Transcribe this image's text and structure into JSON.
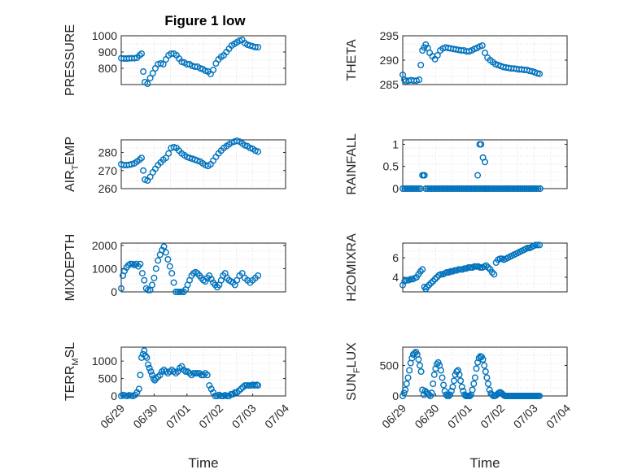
{
  "figure_title": "Figure 1 low",
  "colors": {
    "marker": "#0072BD",
    "grid": "#d9d9d9",
    "axis": "#262626"
  },
  "chart_data": [
    {
      "id": "pressure",
      "type": "scatter",
      "ylabel": "PRESSURE",
      "ylim": [
        700,
        1000
      ],
      "yticks": [
        800,
        900,
        1000
      ],
      "ytick_labels": [
        "800",
        "900",
        "1000"
      ],
      "xlim": [
        0,
        5
      ],
      "xticks": [],
      "xtick_labels": [],
      "xlabel": "",
      "grid": true,
      "x": [
        0.0,
        0.08,
        0.16,
        0.24,
        0.32,
        0.4,
        0.48,
        0.56,
        0.62,
        0.67,
        0.72,
        0.8,
        0.88,
        0.96,
        1.04,
        1.12,
        1.2,
        1.28,
        1.36,
        1.44,
        1.52,
        1.6,
        1.68,
        1.76,
        1.84,
        1.92,
        2.0,
        2.08,
        2.16,
        2.24,
        2.32,
        2.4,
        2.48,
        2.56,
        2.64,
        2.72,
        2.8,
        2.88,
        2.96,
        3.04,
        3.12,
        3.2,
        3.28,
        3.36,
        3.44,
        3.52,
        3.6,
        3.68,
        3.76,
        3.84,
        3.92,
        4.0,
        4.08,
        4.16
      ],
      "y": [
        862,
        860,
        860,
        861,
        862,
        862,
        865,
        880,
        890,
        780,
        715,
        705,
        740,
        770,
        800,
        825,
        830,
        825,
        855,
        880,
        890,
        890,
        880,
        860,
        840,
        835,
        825,
        825,
        815,
        810,
        810,
        800,
        795,
        785,
        780,
        765,
        790,
        830,
        855,
        870,
        880,
        900,
        920,
        940,
        950,
        960,
        970,
        975,
        955,
        945,
        940,
        935,
        930,
        930
      ]
    },
    {
      "id": "theta",
      "type": "scatter",
      "ylabel": "THETA",
      "ylim": [
        285,
        295
      ],
      "yticks": [
        285,
        290,
        295
      ],
      "ytick_labels": [
        "285",
        "290",
        "295"
      ],
      "xlim": [
        0,
        5
      ],
      "xticks": [],
      "xtick_labels": [],
      "xlabel": "",
      "grid": true,
      "x": [
        0.0,
        0.05,
        0.1,
        0.18,
        0.26,
        0.34,
        0.42,
        0.5,
        0.55,
        0.6,
        0.65,
        0.7,
        0.76,
        0.82,
        0.9,
        0.98,
        1.06,
        1.14,
        1.22,
        1.3,
        1.38,
        1.46,
        1.54,
        1.62,
        1.7,
        1.78,
        1.86,
        1.94,
        2.02,
        2.1,
        2.18,
        2.26,
        2.34,
        2.42,
        2.5,
        2.58,
        2.66,
        2.74,
        2.82,
        2.9,
        2.98,
        3.06,
        3.14,
        3.22,
        3.3,
        3.38,
        3.46,
        3.54,
        3.62,
        3.7,
        3.78,
        3.86,
        3.94,
        4.02,
        4.1,
        4.16
      ],
      "y": [
        287.0,
        286.0,
        285.7,
        285.8,
        285.9,
        285.8,
        285.8,
        286.0,
        289.0,
        292.0,
        292.6,
        293.2,
        292.5,
        291.5,
        290.8,
        290.2,
        291.0,
        292.0,
        292.4,
        292.6,
        292.5,
        292.4,
        292.3,
        292.2,
        292.1,
        292.0,
        292.0,
        291.8,
        291.8,
        292.0,
        292.3,
        292.5,
        292.8,
        293.0,
        291.5,
        290.5,
        290.0,
        289.6,
        289.2,
        289.0,
        288.8,
        288.6,
        288.5,
        288.4,
        288.3,
        288.3,
        288.2,
        288.1,
        288.1,
        288.0,
        288.0,
        287.8,
        287.7,
        287.5,
        287.3,
        287.2
      ]
    },
    {
      "id": "air_temp",
      "type": "scatter",
      "ylabel": "AIR_TEMP",
      "ylim": [
        260,
        287
      ],
      "yticks": [
        260,
        270,
        280
      ],
      "ytick_labels": [
        "260",
        "270",
        "280"
      ],
      "xlim": [
        0,
        5
      ],
      "xticks": [],
      "xtick_labels": [],
      "xlabel": "",
      "grid": true,
      "x": [
        0.0,
        0.08,
        0.16,
        0.24,
        0.32,
        0.4,
        0.48,
        0.56,
        0.62,
        0.67,
        0.72,
        0.8,
        0.88,
        0.96,
        1.04,
        1.12,
        1.2,
        1.28,
        1.36,
        1.44,
        1.52,
        1.6,
        1.68,
        1.76,
        1.84,
        1.92,
        2.0,
        2.08,
        2.16,
        2.24,
        2.32,
        2.4,
        2.48,
        2.56,
        2.64,
        2.72,
        2.8,
        2.88,
        2.96,
        3.04,
        3.12,
        3.2,
        3.28,
        3.36,
        3.44,
        3.52,
        3.6,
        3.68,
        3.76,
        3.84,
        3.92,
        4.0,
        4.08,
        4.16
      ],
      "y": [
        273.5,
        273.0,
        273.0,
        273.2,
        273.5,
        274.0,
        275.0,
        276.0,
        277.0,
        270.0,
        265.0,
        264.5,
        266.5,
        269.0,
        271.0,
        273.0,
        274.5,
        276.0,
        277.0,
        279.5,
        282.5,
        283.0,
        282.5,
        281.0,
        279.5,
        278.5,
        277.5,
        277.0,
        276.5,
        276.0,
        275.5,
        275.0,
        274.0,
        273.0,
        272.5,
        273.5,
        275.5,
        277.5,
        279.5,
        281.0,
        282.5,
        283.5,
        284.5,
        285.5,
        286.0,
        286.5,
        286.0,
        285.0,
        284.0,
        283.5,
        282.5,
        282.0,
        281.0,
        280.5
      ]
    },
    {
      "id": "rainfall",
      "type": "scatter",
      "ylabel": "RAINFALL",
      "ylim": [
        0,
        1.1
      ],
      "yticks": [
        0,
        0.5,
        1
      ],
      "ytick_labels": [
        "0",
        "0.5",
        "1"
      ],
      "xlim": [
        0,
        5
      ],
      "xticks": [],
      "xtick_labels": [],
      "xlabel": "",
      "grid": true,
      "x": [
        0.0,
        0.06,
        0.12,
        0.18,
        0.24,
        0.3,
        0.36,
        0.42,
        0.48,
        0.54,
        0.6,
        0.64,
        0.66,
        0.7,
        0.76,
        0.82,
        0.88,
        0.94,
        1.0,
        1.06,
        1.12,
        1.18,
        1.24,
        1.3,
        1.36,
        1.42,
        1.48,
        1.54,
        1.6,
        1.66,
        1.72,
        1.78,
        1.84,
        1.9,
        1.96,
        2.02,
        2.08,
        2.14,
        2.2,
        2.26,
        2.32,
        2.38,
        2.44,
        2.5,
        2.56,
        2.62,
        2.68,
        2.74,
        2.8,
        2.86,
        2.92,
        2.98,
        3.04,
        3.1,
        3.16,
        3.22,
        3.28,
        3.34,
        3.4,
        3.46,
        3.52,
        3.58,
        3.64,
        3.7,
        3.76,
        3.82,
        3.88,
        3.94,
        4.0,
        4.06,
        4.12,
        4.18,
        2.28,
        2.34,
        2.38,
        2.44,
        2.5,
        2.52
      ],
      "y": [
        0,
        0,
        0,
        0,
        0,
        0,
        0,
        0,
        0,
        0,
        0.3,
        0.3,
        0.3,
        0,
        0,
        0,
        0,
        0,
        0,
        0,
        0,
        0,
        0,
        0,
        0,
        0,
        0,
        0,
        0,
        0,
        0,
        0,
        0,
        0,
        0,
        0,
        0,
        0,
        0,
        0,
        0,
        0,
        0,
        0,
        0,
        0,
        0,
        0,
        0,
        0,
        0,
        0,
        0,
        0,
        0,
        0,
        0,
        0,
        0,
        0,
        0,
        0,
        0,
        0,
        0,
        0,
        0,
        0,
        0,
        0,
        0,
        0,
        0.3,
        1.0,
        1.0,
        0.7,
        0.6,
        0
      ]
    },
    {
      "id": "mixdepth",
      "type": "scatter",
      "ylabel": "MIXDEPTH",
      "ylim": [
        0,
        2100
      ],
      "yticks": [
        0,
        1000,
        2000
      ],
      "ytick_labels": [
        "0",
        "1000",
        "2000"
      ],
      "xlim": [
        0,
        5
      ],
      "xticks": [],
      "xtick_labels": [],
      "xlabel": "",
      "grid": true,
      "x": [
        0.0,
        0.05,
        0.1,
        0.16,
        0.22,
        0.28,
        0.34,
        0.4,
        0.46,
        0.52,
        0.58,
        0.64,
        0.7,
        0.76,
        0.82,
        0.88,
        0.94,
        1.0,
        1.06,
        1.12,
        1.18,
        1.24,
        1.3,
        1.36,
        1.42,
        1.48,
        1.54,
        1.6,
        1.66,
        1.72,
        1.78,
        1.84,
        1.9,
        1.96,
        2.02,
        2.08,
        2.14,
        2.2,
        2.26,
        2.32,
        2.38,
        2.44,
        2.5,
        2.56,
        2.62,
        2.68,
        2.74,
        2.8,
        2.86,
        2.92,
        2.98,
        3.04,
        3.1,
        3.16,
        3.22,
        3.28,
        3.34,
        3.4,
        3.46,
        3.52,
        3.6,
        3.68,
        3.76,
        3.84,
        3.92,
        4.0,
        4.08,
        4.16
      ],
      "y": [
        150,
        700,
        900,
        1050,
        1150,
        1200,
        1200,
        1150,
        1200,
        1100,
        1200,
        800,
        500,
        150,
        80,
        80,
        300,
        600,
        1000,
        1350,
        1600,
        1800,
        1950,
        1700,
        1400,
        1100,
        800,
        400,
        0,
        0,
        0,
        0,
        0,
        100,
        300,
        500,
        700,
        800,
        850,
        800,
        700,
        600,
        500,
        450,
        600,
        700,
        550,
        400,
        300,
        200,
        300,
        500,
        700,
        800,
        600,
        500,
        450,
        400,
        300,
        500,
        700,
        800,
        600,
        500,
        400,
        500,
        600,
        700
      ]
    },
    {
      "id": "h2omixra",
      "type": "scatter",
      "ylabel": "H2OMIXRA",
      "ylim": [
        2.5,
        7.5
      ],
      "yticks": [
        4,
        6
      ],
      "ytick_labels": [
        "4",
        "6"
      ],
      "xlim": [
        0,
        5
      ],
      "xticks": [],
      "xtick_labels": [],
      "xlabel": "",
      "grid": true,
      "x": [
        0.0,
        0.06,
        0.12,
        0.18,
        0.24,
        0.3,
        0.36,
        0.42,
        0.48,
        0.54,
        0.6,
        0.66,
        0.7,
        0.74,
        0.8,
        0.86,
        0.92,
        0.98,
        1.04,
        1.1,
        1.16,
        1.22,
        1.28,
        1.34,
        1.4,
        1.46,
        1.52,
        1.58,
        1.64,
        1.7,
        1.76,
        1.82,
        1.88,
        1.94,
        2.0,
        2.06,
        2.12,
        2.18,
        2.24,
        2.3,
        2.36,
        2.42,
        2.48,
        2.54,
        2.6,
        2.66,
        2.72,
        2.78,
        2.84,
        2.9,
        2.96,
        3.02,
        3.08,
        3.14,
        3.2,
        3.26,
        3.32,
        3.38,
        3.44,
        3.5,
        3.56,
        3.62,
        3.68,
        3.74,
        3.8,
        3.86,
        3.92,
        3.98,
        4.04,
        4.1,
        4.16
      ],
      "y": [
        3.2,
        3.6,
        3.7,
        3.7,
        3.8,
        3.8,
        3.9,
        4.0,
        4.3,
        4.6,
        4.8,
        3.0,
        2.8,
        3.0,
        3.2,
        3.4,
        3.6,
        3.8,
        4.0,
        4.2,
        4.3,
        4.3,
        4.4,
        4.5,
        4.5,
        4.6,
        4.6,
        4.7,
        4.7,
        4.8,
        4.8,
        4.8,
        4.9,
        4.9,
        5.0,
        5.0,
        5.0,
        5.1,
        5.1,
        5.1,
        5.0,
        5.0,
        5.1,
        5.2,
        5.0,
        4.8,
        4.5,
        4.3,
        5.5,
        5.8,
        5.9,
        5.9,
        5.8,
        5.9,
        6.0,
        6.1,
        6.2,
        6.3,
        6.4,
        6.5,
        6.6,
        6.7,
        6.8,
        6.9,
        7.0,
        7.0,
        7.1,
        7.2,
        7.3,
        7.3,
        7.3
      ]
    },
    {
      "id": "terr_msl",
      "type": "scatter",
      "ylabel": "TERR_MSL",
      "ylim": [
        0,
        1400
      ],
      "yticks": [
        0,
        500,
        1000
      ],
      "ytick_labels": [
        "0",
        "500",
        "1000"
      ],
      "xlim": [
        0,
        5
      ],
      "xticks": [
        0,
        1,
        2,
        3,
        4,
        5
      ],
      "xtick_labels": [
        "06/29",
        "06/30",
        "07/01",
        "07/02",
        "07/03",
        "07/04"
      ],
      "xlabel": "Time",
      "grid": true,
      "x": [
        0.0,
        0.06,
        0.12,
        0.18,
        0.24,
        0.3,
        0.36,
        0.42,
        0.48,
        0.54,
        0.58,
        0.62,
        0.66,
        0.7,
        0.74,
        0.78,
        0.82,
        0.86,
        0.9,
        0.94,
        0.98,
        1.02,
        1.06,
        1.12,
        1.18,
        1.24,
        1.3,
        1.36,
        1.42,
        1.48,
        1.54,
        1.6,
        1.66,
        1.72,
        1.78,
        1.84,
        1.9,
        1.96,
        2.02,
        2.08,
        2.14,
        2.2,
        2.26,
        2.32,
        2.38,
        2.44,
        2.5,
        2.56,
        2.62,
        2.68,
        2.74,
        2.8,
        2.86,
        2.92,
        2.98,
        3.04,
        3.1,
        3.16,
        3.22,
        3.28,
        3.34,
        3.4,
        3.46,
        3.52,
        3.58,
        3.64,
        3.7,
        3.76,
        3.82,
        3.88,
        3.94,
        4.0,
        4.06,
        4.12,
        4.16
      ],
      "y": [
        0,
        30,
        10,
        0,
        20,
        10,
        0,
        30,
        100,
        200,
        600,
        1100,
        1200,
        1300,
        1150,
        1100,
        900,
        800,
        700,
        600,
        500,
        450,
        500,
        550,
        600,
        700,
        750,
        700,
        650,
        700,
        750,
        700,
        650,
        700,
        800,
        850,
        750,
        700,
        700,
        650,
        600,
        650,
        650,
        650,
        650,
        600,
        600,
        650,
        600,
        300,
        200,
        100,
        0,
        0,
        30,
        0,
        0,
        20,
        0,
        0,
        50,
        50,
        100,
        100,
        150,
        200,
        250,
        300,
        300,
        300,
        300,
        320,
        300,
        320,
        300
      ]
    },
    {
      "id": "sun_flux",
      "type": "scatter",
      "ylabel": "SUN_FLUX",
      "ylim": [
        0,
        800
      ],
      "yticks": [
        0,
        500
      ],
      "ytick_labels": [
        "0",
        "500"
      ],
      "xlim": [
        0,
        5
      ],
      "xticks": [
        0,
        1,
        2,
        3,
        4,
        5
      ],
      "xtick_labels": [
        "06/29",
        "06/30",
        "07/01",
        "07/02",
        "07/03",
        "07/04"
      ],
      "xlabel": "Time",
      "grid": true,
      "x": [
        0.0,
        0.04,
        0.08,
        0.12,
        0.16,
        0.2,
        0.24,
        0.28,
        0.32,
        0.36,
        0.4,
        0.44,
        0.48,
        0.52,
        0.56,
        0.6,
        0.64,
        0.68,
        0.72,
        0.76,
        0.8,
        0.84,
        0.88,
        0.92,
        0.96,
        1.0,
        1.04,
        1.08,
        1.12,
        1.16,
        1.2,
        1.24,
        1.28,
        1.32,
        1.36,
        1.4,
        1.44,
        1.48,
        1.52,
        1.56,
        1.6,
        1.64,
        1.68,
        1.72,
        1.76,
        1.8,
        1.84,
        1.88,
        1.92,
        1.96,
        2.0,
        2.04,
        2.08,
        2.12,
        2.16,
        2.2,
        2.24,
        2.28,
        2.32,
        2.36,
        2.4,
        2.44,
        2.48,
        2.52,
        2.56,
        2.6,
        2.64,
        2.68,
        2.72,
        2.76,
        2.8,
        2.84,
        2.88,
        2.92,
        2.96,
        3.0,
        3.04,
        3.08,
        3.12,
        3.16,
        3.2,
        3.24,
        3.28,
        3.32,
        3.36,
        3.4,
        3.44,
        3.48,
        3.52,
        3.56,
        3.6,
        3.64,
        3.68,
        3.72,
        3.76,
        3.8,
        3.84,
        3.88,
        3.92,
        3.96,
        4.0,
        4.04,
        4.08,
        4.12,
        4.16
      ],
      "y": [
        0,
        50,
        100,
        200,
        300,
        420,
        540,
        620,
        680,
        700,
        720,
        680,
        600,
        500,
        400,
        100,
        20,
        80,
        60,
        40,
        20,
        0,
        50,
        200,
        350,
        450,
        520,
        550,
        500,
        420,
        300,
        180,
        80,
        20,
        0,
        0,
        20,
        80,
        150,
        250,
        350,
        400,
        420,
        350,
        250,
        150,
        80,
        20,
        0,
        0,
        0,
        0,
        20,
        100,
        200,
        300,
        450,
        550,
        620,
        650,
        640,
        600,
        500,
        400,
        300,
        200,
        100,
        40,
        20,
        0,
        0,
        10,
        30,
        50,
        60,
        50,
        30,
        10,
        0,
        0,
        0,
        0,
        0,
        0,
        0,
        0,
        0,
        0,
        0,
        0,
        0,
        0,
        0,
        0,
        0,
        0,
        0,
        0,
        0,
        0,
        0,
        0,
        0,
        0,
        0
      ]
    }
  ]
}
